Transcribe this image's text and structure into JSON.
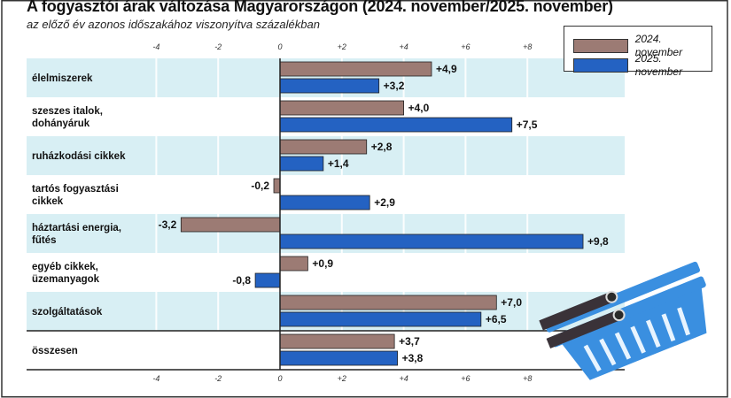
{
  "chart_data": {
    "type": "bar",
    "orientation": "horizontal",
    "title": "A fogyasztói árak változása Magyarországon (2024. november/2025. november)",
    "subtitle": "az előző év azonos időszakához viszonyítva százalékban",
    "categories": [
      [
        "élelmiszerek"
      ],
      [
        "szeszes italok,",
        "dohányáruk"
      ],
      [
        "ruházkodási cikkek"
      ],
      [
        "tartós fogyasztási",
        "cikkek"
      ],
      [
        "háztartási energia,",
        "fűtés"
      ],
      [
        "egyéb cikkek,",
        "üzemanyagok"
      ],
      [
        "szolgáltatások"
      ],
      [
        "összesen"
      ]
    ],
    "series": [
      {
        "name": "2024. november",
        "color": "#9c7b74",
        "values": [
          4.9,
          4.0,
          2.8,
          -0.2,
          -3.2,
          0.9,
          7.0,
          3.7
        ],
        "labels": [
          "+4,9",
          "+4,0",
          "+2,8",
          "-0,2",
          "-3,2",
          "+0,9",
          "+7,0",
          "+3,7"
        ]
      },
      {
        "name": "2025. november",
        "color": "#2462c2",
        "values": [
          3.2,
          7.5,
          1.4,
          2.9,
          9.8,
          -0.8,
          6.5,
          3.8
        ],
        "labels": [
          "+3,2",
          "+7,5",
          "+1,4",
          "+2,9",
          "+9,8",
          "-0,8",
          "+6,5",
          "+3,8"
        ]
      }
    ],
    "x_ticks": [
      -4,
      -2,
      0,
      2,
      4,
      6,
      8
    ],
    "x_tick_labels": [
      "-4",
      "-2",
      "0",
      "+2",
      "+4",
      "+6",
      "+8"
    ],
    "grid": true,
    "legend": "top-right",
    "row_colors": [
      "#d8eff4",
      "#ffffff"
    ]
  }
}
